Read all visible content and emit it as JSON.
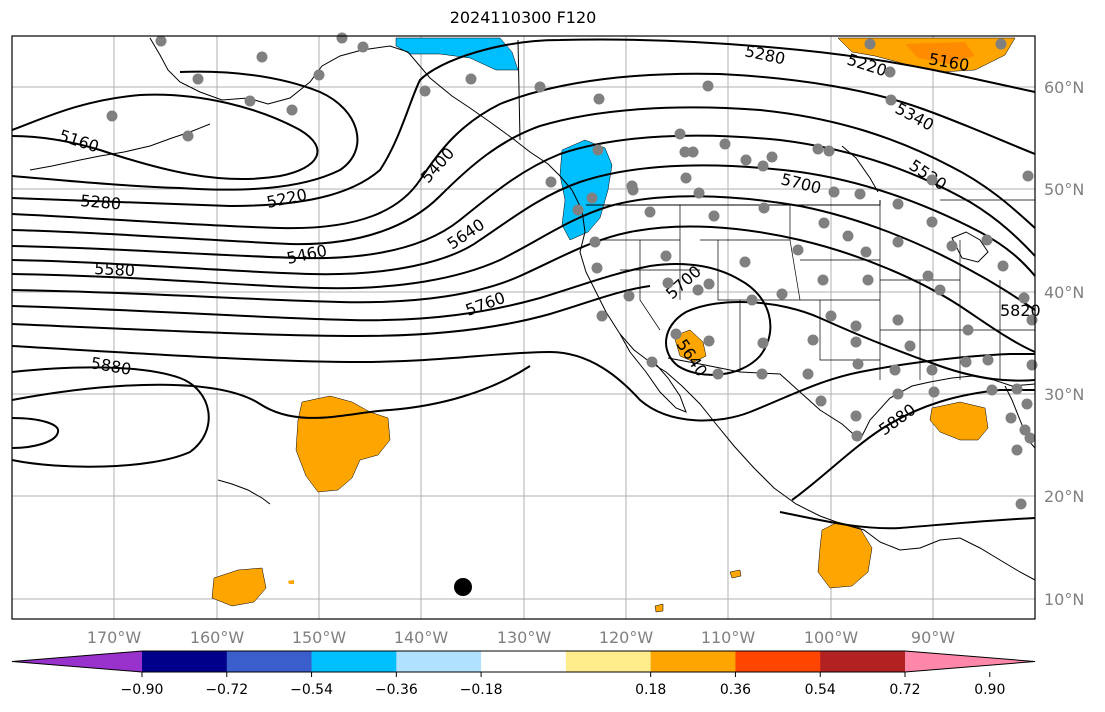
{
  "title": "2024110300 F120",
  "lat_labels": [
    "60°N",
    "50°N",
    "40°N",
    "30°N",
    "20°N",
    "10°N"
  ],
  "lon_labels": [
    "170°W",
    "160°W",
    "150°W",
    "140°W",
    "130°W",
    "120°W",
    "110°W",
    "100°W",
    "90°W"
  ],
  "contour_labels": [
    "5160",
    "5220",
    "5280",
    "5340",
    "5400",
    "5460",
    "5520",
    "5580",
    "5640",
    "5700",
    "5760",
    "5820",
    "5880"
  ],
  "colorbar": {
    "tick_labels": [
      "−0.90",
      "−0.72",
      "−0.54",
      "−0.36",
      "−0.18",
      "0.18",
      "0.36",
      "0.54",
      "0.72",
      "0.90"
    ],
    "colors": [
      "#9932cc",
      "#00008b",
      "#3a5fcd",
      "#00bfff",
      "#b0e2ff",
      "#ffffff",
      "#ffec8b",
      "#ffa500",
      "#ff4500",
      "#b22222",
      "#ff88aa"
    ]
  },
  "colors": {
    "positive_fill": "#ffa500",
    "strong_positive_fill": "#ff8c00",
    "negative_fill": "#00bfff",
    "station_dot": "#808080",
    "marker": "#000000",
    "gridline": "#b0b0b0",
    "contour": "#000000"
  }
}
